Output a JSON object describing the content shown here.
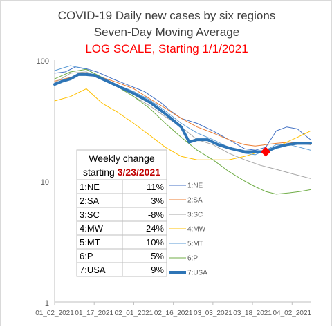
{
  "chart_data": {
    "type": "line",
    "title": "COVID-19 Daily new cases by six regions",
    "subtitle": "Seven-Day Moving Average",
    "subtitle2": "LOG SCALE, Starting 1/1/2021",
    "y_scale": "log",
    "ylim": [
      1,
      100
    ],
    "y_ticks": [
      "100",
      "10",
      "1"
    ],
    "xlim": [
      "2021-01-02",
      "2021-04-09"
    ],
    "x_ticks": [
      {
        "x": "2021-01-02",
        "label": "01_02_2021"
      },
      {
        "x": "2021-01-17",
        "label": "01_17_2021"
      },
      {
        "x": "2021-02-01",
        "label": "02_01_2021"
      },
      {
        "x": "2021-02-16",
        "label": "02_16_2021"
      },
      {
        "x": "2021-03-03",
        "label": "03_03_2021"
      },
      {
        "x": "2021-03-18",
        "label": "03_18_2021"
      },
      {
        "x": "2021-04-02",
        "label": "04_02_2021"
      }
    ],
    "grid": false,
    "legend_position": "right of table",
    "series": [
      {
        "name": "1:NE",
        "color": "#4472c4",
        "width": 1,
        "x": [
          "2021-01-02",
          "2021-01-06",
          "2021-01-10",
          "2021-01-14",
          "2021-01-18",
          "2021-01-24",
          "2021-01-30",
          "2021-02-05",
          "2021-02-11",
          "2021-02-15",
          "2021-02-19",
          "2021-02-25",
          "2021-03-03",
          "2021-03-09",
          "2021-03-15",
          "2021-03-19",
          "2021-03-23",
          "2021-03-27",
          "2021-03-31",
          "2021-04-04",
          "2021-04-09"
        ],
        "values": [
          78,
          80,
          88,
          85,
          80,
          70,
          62,
          55,
          45,
          38,
          33,
          30,
          26,
          22,
          18.5,
          18,
          19,
          26,
          28,
          27,
          22
        ]
      },
      {
        "name": "2:SA",
        "color": "#ed7d31",
        "width": 1,
        "x": [
          "2021-01-02",
          "2021-01-08",
          "2021-01-14",
          "2021-01-20",
          "2021-01-26",
          "2021-02-01",
          "2021-02-07",
          "2021-02-13",
          "2021-02-19",
          "2021-02-25",
          "2021-03-03",
          "2021-03-09",
          "2021-03-15",
          "2021-03-19",
          "2021-03-23",
          "2021-03-27",
          "2021-04-01",
          "2021-04-05",
          "2021-04-09"
        ],
        "values": [
          67,
          72,
          78,
          72,
          65,
          58,
          48,
          40,
          33,
          28,
          25,
          22,
          20,
          19.5,
          20,
          20.5,
          21,
          20.5,
          20
        ]
      },
      {
        "name": "3:SC",
        "color": "#a5a5a5",
        "width": 1,
        "x": [
          "2021-01-02",
          "2021-01-08",
          "2021-01-14",
          "2021-01-20",
          "2021-01-26",
          "2021-02-01",
          "2021-02-07",
          "2021-02-13",
          "2021-02-19",
          "2021-02-25",
          "2021-03-03",
          "2021-03-09",
          "2021-03-15",
          "2021-03-21",
          "2021-03-27",
          "2021-04-02",
          "2021-04-09"
        ],
        "values": [
          65,
          78,
          80,
          70,
          60,
          50,
          42,
          34,
          28,
          22,
          20,
          17,
          15,
          13.5,
          12.5,
          11.5,
          10.5
        ]
      },
      {
        "name": "4:MW",
        "color": "#ffc000",
        "width": 1,
        "x": [
          "2021-01-02",
          "2021-01-08",
          "2021-01-14",
          "2021-01-20",
          "2021-01-26",
          "2021-02-01",
          "2021-02-07",
          "2021-02-13",
          "2021-02-19",
          "2021-02-25",
          "2021-03-03",
          "2021-03-09",
          "2021-03-15",
          "2021-03-19",
          "2021-03-23",
          "2021-03-27",
          "2021-03-31",
          "2021-04-04",
          "2021-04-09"
        ],
        "values": [
          46,
          50,
          58,
          44,
          37,
          30,
          24,
          19,
          16,
          15,
          15,
          15,
          16,
          17,
          18,
          19,
          21,
          23,
          26
        ]
      },
      {
        "name": "5:MT",
        "color": "#5b9bd5",
        "width": 1,
        "x": [
          "2021-01-02",
          "2021-01-08",
          "2021-01-14",
          "2021-01-20",
          "2021-01-26",
          "2021-02-01",
          "2021-02-07",
          "2021-02-13",
          "2021-02-19",
          "2021-02-25",
          "2021-03-03",
          "2021-03-09",
          "2021-03-15",
          "2021-03-19",
          "2021-03-23",
          "2021-03-27",
          "2021-04-01",
          "2021-04-05",
          "2021-04-09"
        ],
        "values": [
          82,
          90,
          84,
          72,
          62,
          55,
          47,
          38,
          30,
          25,
          22,
          19,
          17,
          16.5,
          18,
          20,
          20,
          19,
          18
        ]
      },
      {
        "name": "6:P",
        "color": "#70ad47",
        "width": 1,
        "x": [
          "2021-01-02",
          "2021-01-08",
          "2021-01-14",
          "2021-01-20",
          "2021-01-26",
          "2021-02-01",
          "2021-02-07",
          "2021-02-13",
          "2021-02-19",
          "2021-02-25",
          "2021-03-03",
          "2021-03-09",
          "2021-03-15",
          "2021-03-19",
          "2021-03-23",
          "2021-03-27",
          "2021-04-01",
          "2021-04-05",
          "2021-04-09"
        ],
        "values": [
          70,
          80,
          84,
          72,
          60,
          50,
          40,
          30,
          23,
          18,
          15,
          12,
          10,
          9,
          8.2,
          7.8,
          8.0,
          8.2,
          8.5
        ]
      },
      {
        "name": "7:USA",
        "color": "#2e75b6",
        "width": 4,
        "x": [
          "2021-01-02",
          "2021-01-05",
          "2021-01-08",
          "2021-01-11",
          "2021-01-14",
          "2021-01-17",
          "2021-01-20",
          "2021-01-26",
          "2021-02-01",
          "2021-02-07",
          "2021-02-13",
          "2021-02-19",
          "2021-02-22",
          "2021-02-25",
          "2021-03-01",
          "2021-03-05",
          "2021-03-10",
          "2021-03-15",
          "2021-03-19",
          "2021-03-23",
          "2021-03-27",
          "2021-03-31",
          "2021-04-04",
          "2021-04-09"
        ],
        "values": [
          63,
          67,
          70,
          76,
          76,
          75,
          70,
          61,
          53,
          45,
          36,
          28,
          21,
          22,
          22,
          20,
          18.5,
          17.5,
          17.5,
          17.5,
          19,
          20,
          20.5,
          20.5
        ]
      }
    ],
    "marker": {
      "x": "2021-03-23",
      "y": 17.5,
      "color": "#ff0000"
    },
    "table": {
      "header1": "Weekly change",
      "header2_prefix": "starting ",
      "header2_date": "3/23/2021",
      "rows": [
        {
          "region": "1:NE",
          "change": "11%"
        },
        {
          "region": "2:SA",
          "change": "3%"
        },
        {
          "region": "3:SC",
          "change": "-8%"
        },
        {
          "region": "4:MW",
          "change": "24%"
        },
        {
          "region": "5:MT",
          "change": "10%"
        },
        {
          "region": "6:P",
          "change": "5%"
        },
        {
          "region": "7:USA",
          "change": "9%"
        }
      ]
    }
  }
}
